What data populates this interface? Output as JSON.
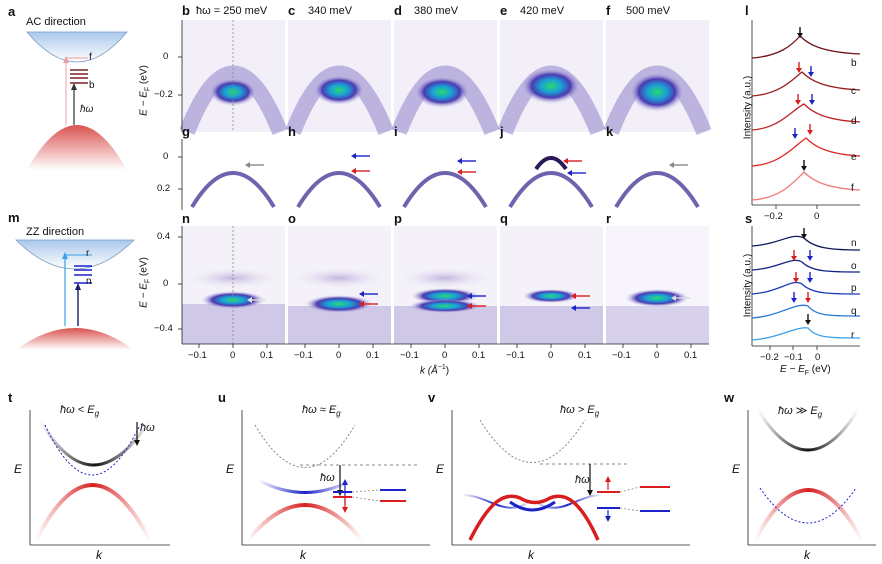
{
  "panels": {
    "a": "a",
    "m": "m",
    "b": "b",
    "c": "c",
    "d": "d",
    "e": "e",
    "f": "f",
    "g": "g",
    "h": "h",
    "i": "i",
    "j": "j",
    "k": "k",
    "n": "n",
    "o": "o",
    "p": "p",
    "q": "q",
    "r": "r",
    "l": "l",
    "s": "s",
    "t": "t",
    "u": "u",
    "v": "v",
    "w": "w"
  },
  "schematics": {
    "ac_title": "AC direction",
    "zz_title": "ZZ direction",
    "ac_labels": [
      "f",
      "b"
    ],
    "zz_labels": [
      "r",
      "n"
    ],
    "hw": "ħω"
  },
  "photon_energies": [
    "ħω = 250 meV",
    "340 meV",
    "380 meV",
    "420 meV",
    "500 meV"
  ],
  "axes": {
    "ylabel": "E − E",
    "ylabel_sub": "F",
    "ylabel_unit": " (eV)",
    "xlabel": "k (Å",
    "xlabel_sup": "−1",
    "xlabel_end": ")",
    "top_yticks": [
      "0",
      "−0.2"
    ],
    "mid_yticks": [
      "0",
      "0.2"
    ],
    "bot_yticks": [
      "0.4",
      "0",
      "−0.4"
    ],
    "kticks": [
      "−0.1",
      "0",
      "0.1"
    ],
    "intensity": "Intensity (a.u.)",
    "l_xticks": [
      "−0.2",
      "0"
    ],
    "s_xticks": [
      "−0.2",
      "−0.1",
      "0"
    ],
    "spec_xlabel": "E − E",
    "spec_xlabel_sub": "F",
    "spec_xlabel_unit": " (eV)"
  },
  "edc_labels_l": [
    "b",
    "c",
    "d",
    "e",
    "f"
  ],
  "edc_labels_s": [
    "n",
    "o",
    "p",
    "q",
    "r"
  ],
  "bottom": {
    "t_title": "ħω < E",
    "u_title": "ħω ≈ E",
    "v_title": "ħω > E",
    "w_title": "ħω ≫ E",
    "sub": "g",
    "E": "E",
    "k": "k",
    "hw": "ħω"
  },
  "colors": {
    "band_red": "#d81e1e",
    "band_blue": "#1a22c8",
    "edc_dark": "#6e1414",
    "edc_light": "#f07a7a",
    "zz_dark": "#0b1a5e",
    "zz_light": "#3aa0e6"
  }
}
